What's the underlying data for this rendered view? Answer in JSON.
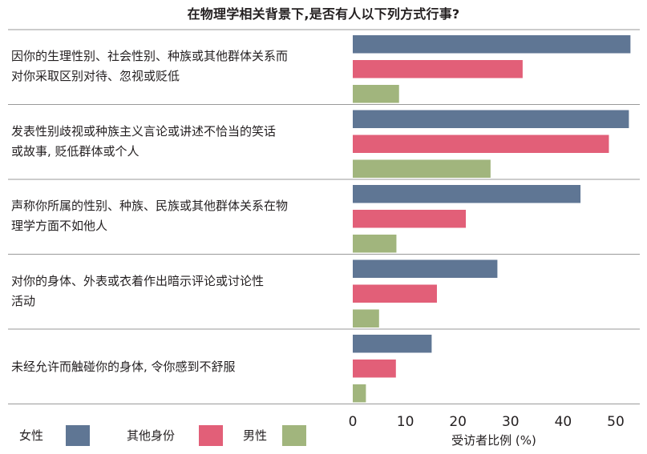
{
  "chart_data": {
    "type": "bar",
    "orientation": "horizontal",
    "title": "在物理学相关背景下,是否有人以下列方式行事?",
    "xlabel": "受访者比例 (%)",
    "ylabel": "",
    "xlim": [
      0,
      53
    ],
    "xticks": [
      0,
      10,
      20,
      30,
      40,
      50
    ],
    "grid": false,
    "legend_position": "bottom",
    "categories": [
      [
        "因你的生理性别、社会性别、种族或其他群体关系而",
        "对你采取区别对待、忽视或贬低"
      ],
      [
        "发表性别歧视或种族主义言论或讲述不恰当的笑话",
        "或故事, 贬低群体或个人"
      ],
      [
        "声称你所属的性别、种族、民族或其他群体关系在物",
        "理学方面不如他人"
      ],
      [
        "对你的身体、外表或衣着作出暗示评论或讨论性",
        "活动"
      ],
      [
        "未经允许而触碰你的身体, 令你感到不舒服"
      ]
    ],
    "series": [
      {
        "name": "女性",
        "color": "#5f7694",
        "values": [
          52.8,
          52.5,
          43.3,
          27.5,
          15.0
        ]
      },
      {
        "name": "其他身份",
        "color": "#e25f78",
        "values": [
          32.3,
          48.7,
          21.5,
          16.0,
          8.2
        ]
      },
      {
        "name": "男性",
        "color": "#a1b57d",
        "values": [
          8.8,
          26.2,
          8.3,
          5.0,
          2.5
        ]
      }
    ]
  }
}
